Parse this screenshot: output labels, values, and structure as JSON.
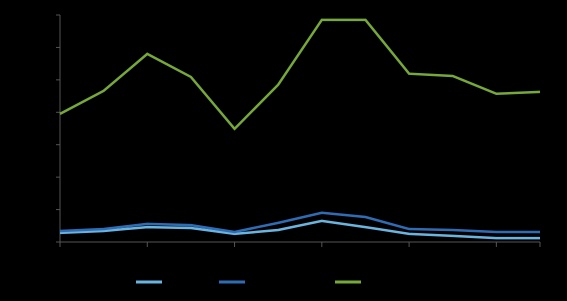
{
  "chart_data": {
    "type": "line",
    "categories": [
      null,
      null,
      null,
      null,
      null,
      null,
      null,
      null,
      null,
      null,
      null,
      null
    ],
    "series": [
      {
        "color": "#6ab4e0",
        "values": [
          0.28,
          0.34,
          0.46,
          0.43,
          0.25,
          0.37,
          0.65,
          0.46,
          0.25,
          0.19,
          0.12,
          0.12
        ]
      },
      {
        "color": "#2e6db5",
        "values": [
          0.34,
          0.4,
          0.56,
          0.52,
          0.31,
          0.59,
          0.9,
          0.77,
          0.4,
          0.37,
          0.31,
          0.31
        ]
      },
      {
        "color": "#77a83a",
        "values": [
          3.95,
          4.66,
          5.8,
          5.09,
          3.49,
          4.85,
          6.85,
          6.85,
          5.19,
          5.12,
          4.57,
          4.63
        ]
      }
    ],
    "ylim": [
      0,
      7
    ],
    "yticks": [
      0,
      1,
      2,
      3,
      4,
      5,
      6,
      7
    ]
  }
}
